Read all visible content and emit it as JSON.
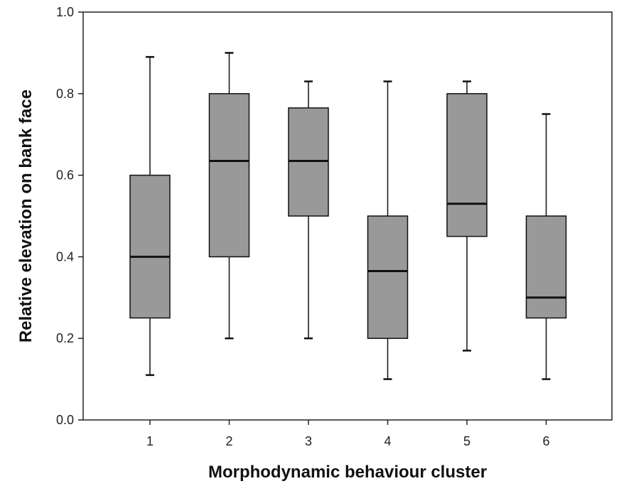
{
  "chart_data": {
    "type": "box",
    "xlabel": "Morphodynamic behaviour cluster",
    "ylabel": "Relative elevation on bank face",
    "ylim": [
      0.0,
      1.0
    ],
    "y_ticks": [
      "0.0",
      "0.2",
      "0.4",
      "0.6",
      "0.8",
      "1.0"
    ],
    "y_tick_values": [
      0.0,
      0.2,
      0.4,
      0.6,
      0.8,
      1.0
    ],
    "grid": false,
    "box_color": "#999999",
    "categories": [
      "1",
      "2",
      "3",
      "4",
      "5",
      "6"
    ],
    "boxes": [
      {
        "category": "1",
        "min": 0.11,
        "q1": 0.25,
        "median": 0.4,
        "q3": 0.6,
        "max": 0.89
      },
      {
        "category": "2",
        "min": 0.2,
        "q1": 0.4,
        "median": 0.635,
        "q3": 0.8,
        "max": 0.9
      },
      {
        "category": "3",
        "min": 0.2,
        "q1": 0.5,
        "median": 0.635,
        "q3": 0.765,
        "max": 0.83
      },
      {
        "category": "4",
        "min": 0.1,
        "q1": 0.2,
        "median": 0.365,
        "q3": 0.5,
        "max": 0.83
      },
      {
        "category": "5",
        "min": 0.17,
        "q1": 0.45,
        "median": 0.53,
        "q3": 0.8,
        "max": 0.83
      },
      {
        "category": "6",
        "min": 0.1,
        "q1": 0.25,
        "median": 0.3,
        "q3": 0.5,
        "max": 0.75
      }
    ]
  }
}
